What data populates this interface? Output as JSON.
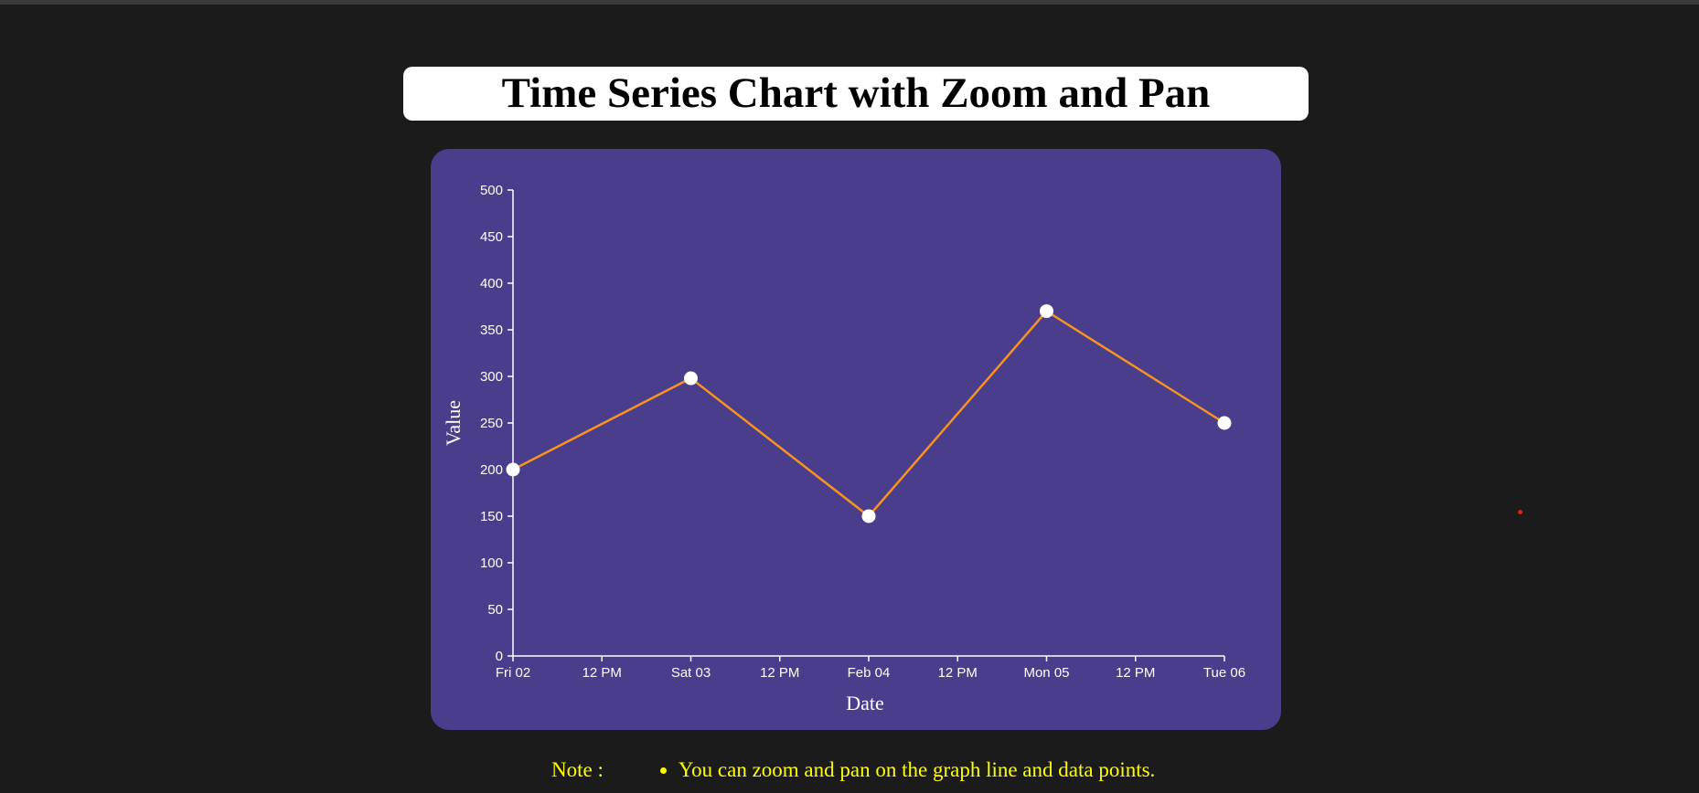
{
  "page": {
    "title": "Time Series Chart with Zoom and Pan",
    "note_label": "Note :",
    "note_items": [
      "You can zoom and pan on the graph line and data points."
    ]
  },
  "colors": {
    "background": "#1b1b1b",
    "panel": "#4a3d8b",
    "line": "#f7931e",
    "point": "#ffffff",
    "note_text": "#ffff00",
    "cursor_dot": "#e0201c"
  },
  "chart_data": {
    "type": "line",
    "title": "",
    "xlabel": "Date",
    "ylabel": "Value",
    "x_axis_type": "time",
    "xlim": [
      "2024-02-02T00:00",
      "2024-02-06T00:00"
    ],
    "ylim": [
      0,
      500
    ],
    "x_ticks": [
      {
        "t": "2024-02-02T00:00",
        "label": "Fri 02"
      },
      {
        "t": "2024-02-02T12:00",
        "label": "12 PM"
      },
      {
        "t": "2024-02-03T00:00",
        "label": "Sat 03"
      },
      {
        "t": "2024-02-03T12:00",
        "label": "12 PM"
      },
      {
        "t": "2024-02-04T00:00",
        "label": "Feb 04"
      },
      {
        "t": "2024-02-04T12:00",
        "label": "12 PM"
      },
      {
        "t": "2024-02-05T00:00",
        "label": "Mon 05"
      },
      {
        "t": "2024-02-05T12:00",
        "label": "12 PM"
      },
      {
        "t": "2024-02-06T00:00",
        "label": "Tue 06"
      }
    ],
    "y_ticks": [
      0,
      50,
      100,
      150,
      200,
      250,
      300,
      350,
      400,
      450,
      500
    ],
    "series": [
      {
        "x": [
          "2024-02-02",
          "2024-02-03",
          "2024-02-04",
          "2024-02-05",
          "2024-02-06"
        ],
        "values": [
          200,
          298,
          150,
          370,
          250
        ]
      }
    ],
    "grid": false,
    "legend": "none"
  }
}
